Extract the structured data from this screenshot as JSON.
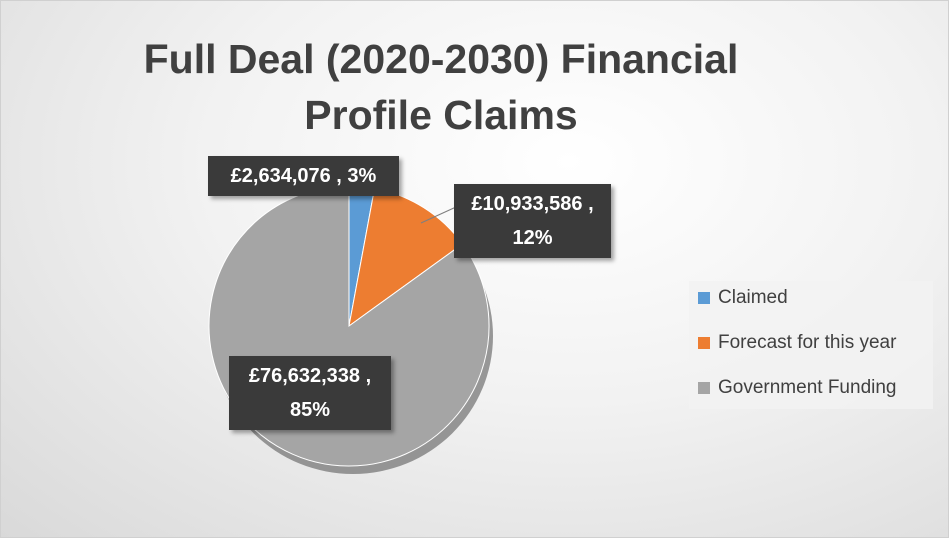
{
  "chart_data": {
    "type": "pie",
    "title": "Full Deal (2020-2030) Financial Profile Claims",
    "categories": [
      "Claimed",
      "Forecast for this year",
      "Government Funding"
    ],
    "values": [
      2634076,
      10933586,
      76632338
    ],
    "value_labels": [
      "£2,634,076 , 3%",
      "£10,933,586 , 12%",
      "£76,632,338 , 85%"
    ],
    "colors": [
      "#5b9bd5",
      "#ed7d31",
      "#a5a5a5"
    ],
    "legend": "right"
  }
}
